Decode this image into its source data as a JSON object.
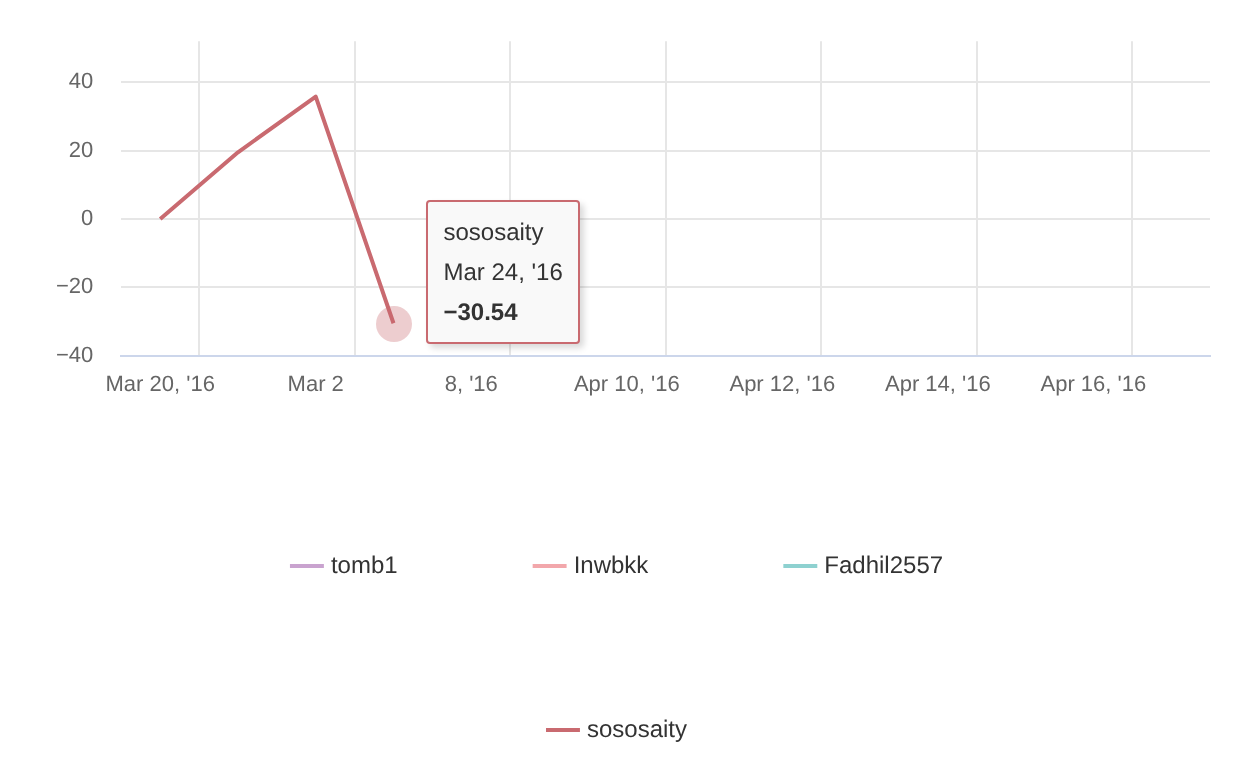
{
  "chart_data": {
    "type": "line",
    "categories": [
      "Mar 20, '16",
      null,
      "Mar 2",
      null,
      "8, '16",
      null,
      "Apr 10, '16",
      null,
      "Apr 12, '16",
      null,
      "Apr 14, '16",
      null,
      "Apr 16, '16",
      null
    ],
    "series": [
      {
        "name": "tomb1",
        "color": "#c9a3cf",
        "values": [
          null,
          null,
          null,
          null,
          null,
          null,
          null,
          null,
          null,
          null,
          null,
          null,
          null,
          null
        ]
      },
      {
        "name": "Inwbkk",
        "color": "#f2a7ab",
        "values": [
          null,
          null,
          null,
          null,
          null,
          null,
          null,
          null,
          null,
          null,
          null,
          null,
          null,
          null
        ]
      },
      {
        "name": "Fadhil2557",
        "color": "#8ed1d0",
        "values": [
          null,
          null,
          null,
          null,
          null,
          null,
          null,
          null,
          null,
          null,
          null,
          null,
          null,
          null
        ]
      },
      {
        "name": "sososaity",
        "color": "#c96a70",
        "values": [
          0,
          19.5,
          35.8,
          -30.54,
          null,
          null,
          null,
          null,
          null,
          null,
          null,
          null,
          null,
          null
        ]
      }
    ],
    "ylim": [
      -40,
      52
    ],
    "yticks": [
      -40,
      -20,
      0,
      20,
      40
    ],
    "grid": true,
    "legend": "bottom",
    "marker": "none",
    "line_style": "solid",
    "annotations": [
      "Mar 24, '16",
      "−30.54"
    ]
  }
}
